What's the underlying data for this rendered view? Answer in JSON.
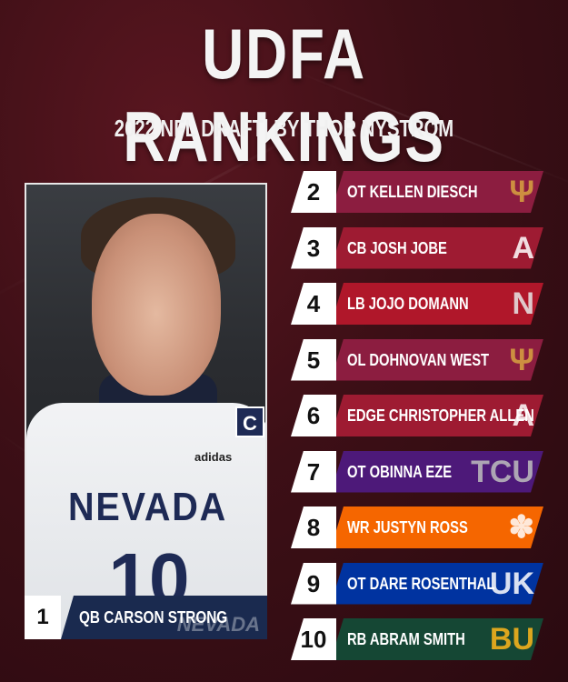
{
  "header": {
    "title": "UDFA RANKINGS",
    "subtitle": "2022 NFL DRAFT| BY THOR NYSTROM"
  },
  "featured": {
    "rank": "1",
    "name": "QB CARSON STRONG",
    "jersey_text": "NEVADA",
    "jersey_number": "10",
    "jersey_brand": "adidas",
    "captain_patch": "C",
    "bar_logo_text": "NEVADA",
    "bar_color": "#1a2a4f"
  },
  "rankings": [
    {
      "rank": "2",
      "name": "OT KELLEN DIESCH",
      "color": "#8c1d40",
      "logo": "trident-logo",
      "logo_glyph": "Ψ",
      "logo_color": "#d9a441"
    },
    {
      "rank": "3",
      "name": "CB JOSH JOBE",
      "color": "#9e1b32",
      "logo": "script-a-logo",
      "logo_glyph": "A",
      "logo_color": "#ffffff"
    },
    {
      "rank": "4",
      "name": "LB JOJO DOMANN",
      "color": "#b0172a",
      "logo": "n-logo",
      "logo_glyph": "N",
      "logo_color": "#e8e8e8"
    },
    {
      "rank": "5",
      "name": "OL DOHNOVAN WEST",
      "color": "#8c1d40",
      "logo": "trident-logo",
      "logo_glyph": "Ψ",
      "logo_color": "#d9a441"
    },
    {
      "rank": "6",
      "name": "EDGE CHRISTOPHER ALLEN",
      "color": "#9e1b32",
      "logo": "script-a-logo",
      "logo_glyph": "A",
      "logo_color": "#ffffff"
    },
    {
      "rank": "7",
      "name": "OT OBINNA EZE",
      "color": "#4d1979",
      "logo": "tcu-logo",
      "logo_glyph": "TCU",
      "logo_color": "#bfbfbf"
    },
    {
      "rank": "8",
      "name": "WR JUSTYN ROSS",
      "color": "#f56600",
      "logo": "paw-logo",
      "logo_glyph": "✽",
      "logo_color": "#ffffff"
    },
    {
      "rank": "9",
      "name": "OT DARE ROSENTHAL",
      "color": "#0033a0",
      "logo": "uk-logo",
      "logo_glyph": "UK",
      "logo_color": "#ffffff"
    },
    {
      "rank": "10",
      "name": "RB ABRAM SMITH",
      "color": "#154734",
      "logo": "bu-logo",
      "logo_glyph": "BU",
      "logo_color": "#ffb81c"
    }
  ]
}
